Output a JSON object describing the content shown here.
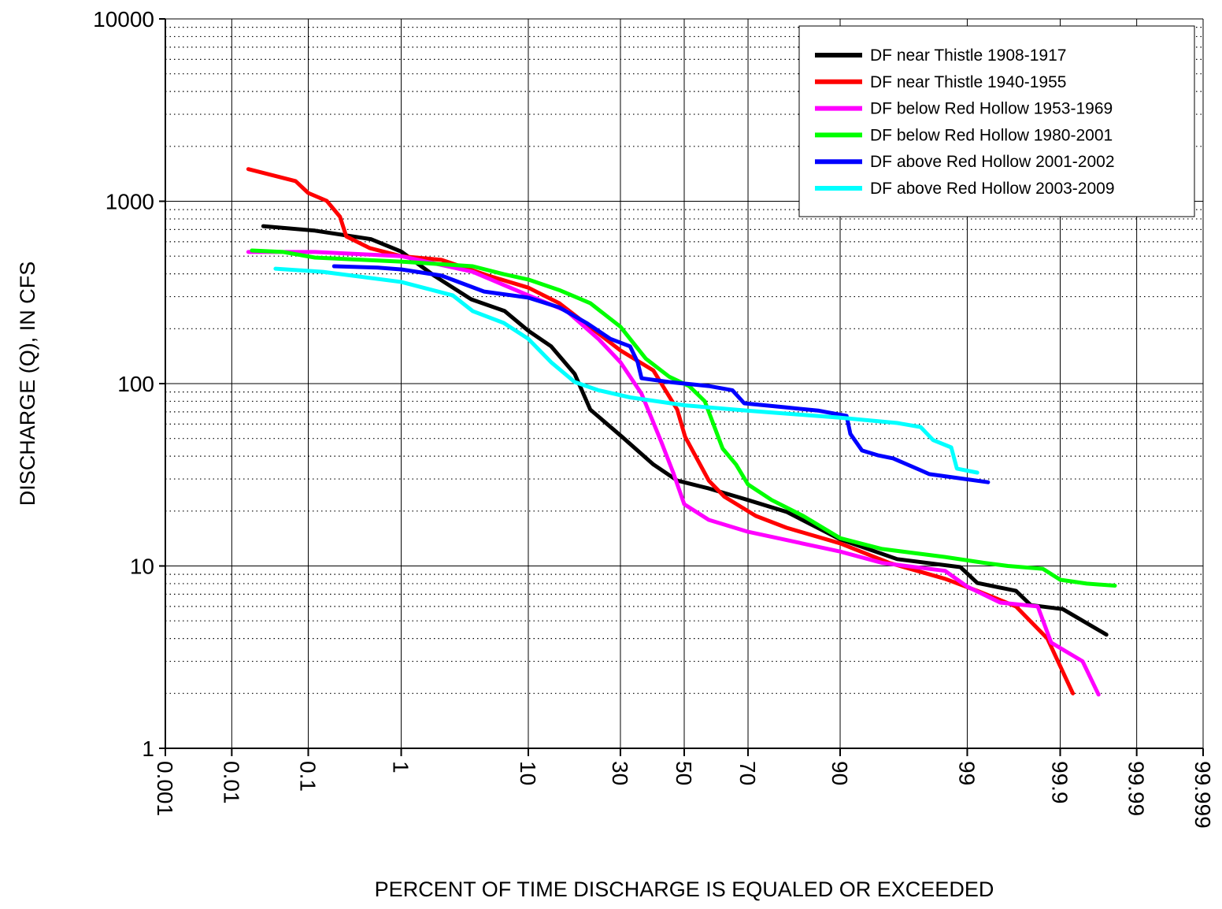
{
  "chart_data": {
    "type": "line",
    "xlabel": "PERCENT OF TIME DISCHARGE IS EQUALED OR EXCEEDED",
    "ylabel": "DISCHARGE (Q), IN CFS",
    "xscale": "probability",
    "yscale": "log",
    "xlim": [
      0.001,
      99.999
    ],
    "ylim": [
      1,
      10000
    ],
    "xticks": [
      0.001,
      0.01,
      0.1,
      1,
      10,
      30,
      50,
      70,
      90,
      99,
      99.9,
      99.99,
      99.999
    ],
    "yticks": [
      1,
      10,
      100,
      1000,
      10000
    ],
    "grid": true,
    "minor_grid": true,
    "legend": "upper right",
    "series": [
      {
        "name": "DF near Thistle 1908-1917",
        "color": "#000000",
        "x": [
          0.027,
          0.12,
          0.5,
          1,
          2,
          4,
          7,
          10,
          13.7,
          18.4,
          22,
          30.5,
          40,
          47.7,
          58,
          70,
          80,
          90,
          96,
          98.84,
          99.2,
          99.68,
          99.78,
          99.907,
          99.974
        ],
        "values": [
          730,
          690,
          620,
          530,
          390,
          290,
          250,
          195,
          160,
          113,
          72,
          51,
          36,
          29.4,
          26.6,
          23,
          19.8,
          14,
          10.9,
          9.85,
          8.07,
          7.3,
          6.1,
          5.8,
          4.2
        ]
      },
      {
        "name": "DF near Thistle 1940-1955",
        "color": "#ff0000",
        "x": [
          0.017,
          0.07,
          0.1,
          0.165,
          0.233,
          0.274,
          0.49,
          1,
          2.3,
          5.35,
          10,
          15.2,
          30,
          40,
          47.7,
          50.3,
          58,
          62.9,
          72.2,
          80,
          90,
          95.4,
          98.4,
          99.2,
          99.68,
          99.858,
          99.93
        ],
        "values": [
          1500,
          1290,
          1110,
          1005,
          823,
          642,
          553,
          500,
          477,
          391,
          336,
          276,
          152,
          118,
          72,
          51,
          29.4,
          24,
          18.8,
          16.2,
          13.3,
          10.4,
          8.5,
          7.3,
          6,
          4,
          2
        ]
      },
      {
        "name": "DF below Red Hollow 1953-1969",
        "color": "#ff00ff",
        "x": [
          0.017,
          0.12,
          1,
          4.1,
          10,
          16.7,
          24,
          30,
          36.3,
          42.5,
          46.4,
          50,
          58,
          70,
          90,
          94.8,
          98.4,
          99,
          99.53,
          99.817,
          99.872,
          99.947,
          99.967
        ],
        "values": [
          527,
          527,
          500,
          410,
          305,
          250,
          176,
          131,
          88,
          48,
          32.5,
          21.8,
          17.9,
          15.4,
          12,
          10.4,
          9.4,
          7.7,
          6.3,
          6,
          3.8,
          3,
          1.97
        ]
      },
      {
        "name": "DF below Red Hollow 1980-2001",
        "color": "#00ff00",
        "x": [
          0.019,
          0.049,
          0.12,
          1,
          4.1,
          6.9,
          10,
          15.2,
          22,
          30,
          37.6,
          45.1,
          51.6,
          56.7,
          62.4,
          66.5,
          70,
          76.4,
          83.6,
          90,
          94.8,
          98.4,
          99.32,
          99.61,
          99.84,
          99.9,
          99.953,
          99.98
        ],
        "values": [
          537,
          527,
          491,
          467,
          440,
          398,
          372,
          326,
          276,
          205,
          137,
          109,
          97,
          80,
          44,
          36,
          28,
          23,
          18.8,
          14.2,
          12.4,
          11.2,
          10.4,
          10,
          9.65,
          8.4,
          8,
          7.8
        ]
      },
      {
        "name": "DF above Red Hollow 2001-2002",
        "color": "#0000ff",
        "x": [
          0.2,
          0.59,
          1,
          2.3,
          5,
          10,
          15.2,
          21.1,
          27.2,
          32.8,
          35.1,
          36.3,
          45.1,
          58,
          65.4,
          68.9,
          80,
          86.6,
          90.9,
          91.4,
          92.8,
          94.4,
          95.7,
          97.4,
          97.8,
          99.375
        ],
        "values": [
          440,
          433,
          423,
          391,
          320,
          296,
          262,
          215,
          176,
          160,
          131,
          107,
          102,
          97,
          92,
          78,
          74,
          71,
          66.5,
          53,
          43,
          40.5,
          38.9,
          33.5,
          31.9,
          28.8
        ]
      },
      {
        "name": "DF above Red Hollow 2003-2009",
        "color": "#00ffff",
        "x": [
          0.039,
          0.149,
          1,
          2.85,
          4.1,
          6.9,
          10,
          13.7,
          18.4,
          24,
          32.8,
          50.3,
          70,
          90,
          96,
          97.4,
          97.96,
          98.59,
          98.75,
          99.2
        ],
        "values": [
          427,
          410,
          361,
          305,
          250,
          215,
          176,
          131,
          102,
          92,
          84,
          76,
          71,
          65,
          60.8,
          57.8,
          49,
          44.7,
          34.2,
          32.5
        ]
      }
    ]
  }
}
